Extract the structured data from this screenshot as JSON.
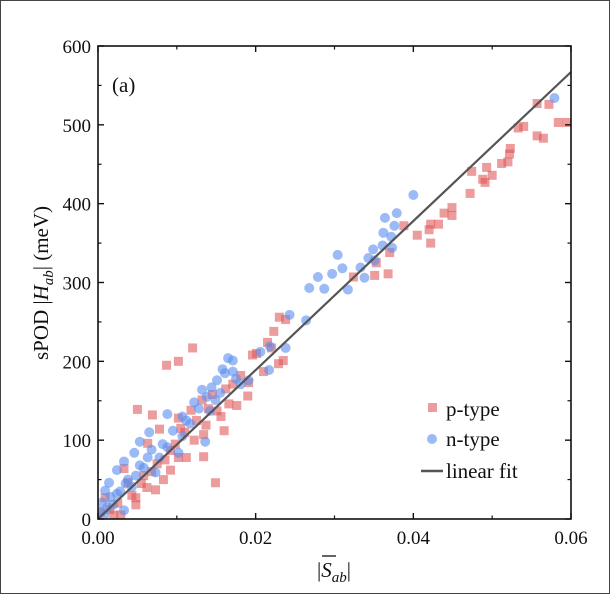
{
  "chart_data": {
    "type": "scatter",
    "panel_label": "(a)",
    "xlabel": {
      "prefix": "|",
      "var": "S",
      "sub": "ab",
      "suffix": "|",
      "overbar": true
    },
    "ylabel": {
      "prefix": "sPOD |",
      "var": "H",
      "sub": "ab",
      "suffix": "| (meV)"
    },
    "xlim": [
      0,
      0.06
    ],
    "ylim": [
      0,
      600
    ],
    "xticks": [
      "0.00",
      "0.02",
      "0.04",
      "0.06"
    ],
    "yticks": [
      "0",
      "100",
      "200",
      "300",
      "400",
      "500",
      "600"
    ],
    "grid": false,
    "legend_position": "bottom-right",
    "colors": {
      "p": "#e05a5a",
      "n": "#5a8ef0",
      "fit": "#555555"
    },
    "series": [
      {
        "name": "p-type",
        "marker": "square",
        "points": [
          [
            0.0584,
            503
          ],
          [
            0.0595,
            503
          ],
          [
            0.0557,
            527
          ],
          [
            0.0572,
            526
          ],
          [
            0.0557,
            486
          ],
          [
            0.0565,
            483
          ],
          [
            0.0533,
            496
          ],
          [
            0.054,
            498
          ],
          [
            0.0523,
            470
          ],
          [
            0.0522,
            463
          ],
          [
            0.052,
            453
          ],
          [
            0.0512,
            451
          ],
          [
            0.05,
            436
          ],
          [
            0.0493,
            446
          ],
          [
            0.0488,
            431
          ],
          [
            0.0491,
            427
          ],
          [
            0.0474,
            441
          ],
          [
            0.0472,
            413
          ],
          [
            0.0449,
            395
          ],
          [
            0.0449,
            385
          ],
          [
            0.0439,
            388
          ],
          [
            0.0432,
            374
          ],
          [
            0.0422,
            374
          ],
          [
            0.0422,
            350
          ],
          [
            0.042,
            367
          ],
          [
            0.0405,
            360
          ],
          [
            0.0388,
            372
          ],
          [
            0.0368,
            311
          ],
          [
            0.037,
            338
          ],
          [
            0.0351,
            309
          ],
          [
            0.0353,
            325
          ],
          [
            0.0324,
            307
          ],
          [
            0.023,
            256
          ],
          [
            0.0238,
            253
          ],
          [
            0.0223,
            238
          ],
          [
            0.0235,
            201
          ],
          [
            0.0229,
            197
          ],
          [
            0.022,
            217
          ],
          [
            0.0215,
            224
          ],
          [
            0.0201,
            210
          ],
          [
            0.0196,
            208
          ],
          [
            0.012,
            217
          ],
          [
            0.0102,
            200
          ],
          [
            0.0087,
            195
          ],
          [
            0.019,
            156
          ],
          [
            0.0176,
            144
          ],
          [
            0.016,
            112
          ],
          [
            0.0181,
            182
          ],
          [
            0.0171,
            171
          ],
          [
            0.005,
            139
          ],
          [
            0.0069,
            132
          ],
          [
            0.0149,
            46
          ],
          [
            0.0134,
            79
          ],
          [
            0.0112,
            78
          ],
          [
            0.0102,
            78
          ],
          [
            0.0092,
            62
          ],
          [
            0.0048,
            18
          ],
          [
            0.0048,
            27
          ],
          [
            0.0029,
            5
          ],
          [
            0.002,
            5
          ],
          [
            0.0073,
            37
          ],
          [
            0.0083,
            50
          ],
          [
            0.0092,
            87
          ],
          [
            0.0078,
            114
          ],
          [
            0.0063,
            96
          ],
          [
            0.0137,
            119
          ],
          [
            0.0134,
            107
          ],
          [
            0.0122,
            100
          ],
          [
            0.0151,
            137
          ],
          [
            0.0156,
            130
          ],
          [
            0.0102,
            128
          ],
          [
            0.0033,
            64
          ],
          [
            0.0038,
            46
          ],
          [
            0.0058,
            55
          ],
          [
            0.0009,
            27
          ],
          [
            0.0003,
            9
          ],
          [
            0.0166,
            146
          ],
          [
            0.0132,
            151
          ],
          [
            0.0191,
            173
          ],
          [
            0.021,
            187
          ],
          [
            0.0043,
            30
          ],
          [
            0.0055,
            45
          ],
          [
            0.0068,
            60
          ],
          [
            0.0085,
            75
          ],
          [
            0.0098,
            95
          ],
          [
            0.011,
            110
          ],
          [
            0.0125,
            125
          ],
          [
            0.014,
            140
          ],
          [
            0.0015,
            12
          ],
          [
            0.0025,
            20
          ],
          [
            0.0062,
            40
          ],
          [
            0.0075,
            70
          ],
          [
            0.0105,
            115
          ],
          [
            0.0118,
            138
          ],
          [
            0.0145,
            158
          ],
          [
            0.0162,
            165
          ]
        ]
      },
      {
        "name": "n-type",
        "marker": "circle",
        "points": [
          [
            0.0579,
            534
          ],
          [
            0.04,
            411
          ],
          [
            0.0379,
            388
          ],
          [
            0.0364,
            382
          ],
          [
            0.0376,
            372
          ],
          [
            0.0362,
            363
          ],
          [
            0.0372,
            358
          ],
          [
            0.0361,
            347
          ],
          [
            0.0373,
            344
          ],
          [
            0.0349,
            342
          ],
          [
            0.0343,
            331
          ],
          [
            0.0351,
            328
          ],
          [
            0.0338,
            306
          ],
          [
            0.0333,
            319
          ],
          [
            0.0304,
            335
          ],
          [
            0.031,
            318
          ],
          [
            0.0297,
            311
          ],
          [
            0.0279,
            307
          ],
          [
            0.0287,
            292
          ],
          [
            0.0268,
            293
          ],
          [
            0.0317,
            291
          ],
          [
            0.0264,
            252
          ],
          [
            0.0243,
            259
          ],
          [
            0.0238,
            217
          ],
          [
            0.0218,
            219
          ],
          [
            0.0217,
            189
          ],
          [
            0.0206,
            212
          ],
          [
            0.0165,
            204
          ],
          [
            0.0171,
            201
          ],
          [
            0.0151,
            176
          ],
          [
            0.0161,
            185
          ],
          [
            0.0144,
            167
          ],
          [
            0.0132,
            164
          ],
          [
            0.0122,
            148
          ],
          [
            0.0107,
            130
          ],
          [
            0.0088,
            133
          ],
          [
            0.0065,
            110
          ],
          [
            0.0053,
            98
          ],
          [
            0.0046,
            84
          ],
          [
            0.0033,
            73
          ],
          [
            0.0024,
            62
          ],
          [
            0.0014,
            46
          ],
          [
            0.0009,
            36
          ],
          [
            0.0005,
            21
          ],
          [
            0.0003,
            9
          ],
          [
            0.0033,
            11
          ],
          [
            0.0019,
            18
          ],
          [
            0.0078,
            78
          ],
          [
            0.0088,
            91
          ],
          [
            0.0136,
            98
          ],
          [
            0.0107,
            105
          ],
          [
            0.0181,
            171
          ],
          [
            0.0191,
            176
          ],
          [
            0.0142,
            137
          ],
          [
            0.0149,
            151
          ],
          [
            0.0171,
            187
          ],
          [
            0.0117,
            121
          ],
          [
            0.0063,
            78
          ],
          [
            0.0053,
            68
          ],
          [
            0.0038,
            50
          ],
          [
            0.0024,
            32
          ],
          [
            0.0043,
            41
          ],
          [
            0.0102,
            84
          ],
          [
            0.0073,
            59
          ],
          [
            0.0012,
            15
          ],
          [
            0.0028,
            35
          ],
          [
            0.0058,
            65
          ],
          [
            0.0082,
            95
          ],
          [
            0.0095,
            112
          ],
          [
            0.0128,
            140
          ],
          [
            0.0155,
            160
          ],
          [
            0.0175,
            178
          ],
          [
            0.0008,
            5
          ],
          [
            0.0035,
            45
          ],
          [
            0.0048,
            55
          ],
          [
            0.0068,
            88
          ],
          [
            0.0112,
            125
          ],
          [
            0.0138,
            155
          ],
          [
            0.0158,
            190
          ],
          [
            0.0016,
            28
          ]
        ]
      },
      {
        "name": "linear fit",
        "type": "line",
        "slope": 9450,
        "intercept": 0,
        "x_range": [
          0,
          0.06
        ]
      }
    ]
  }
}
